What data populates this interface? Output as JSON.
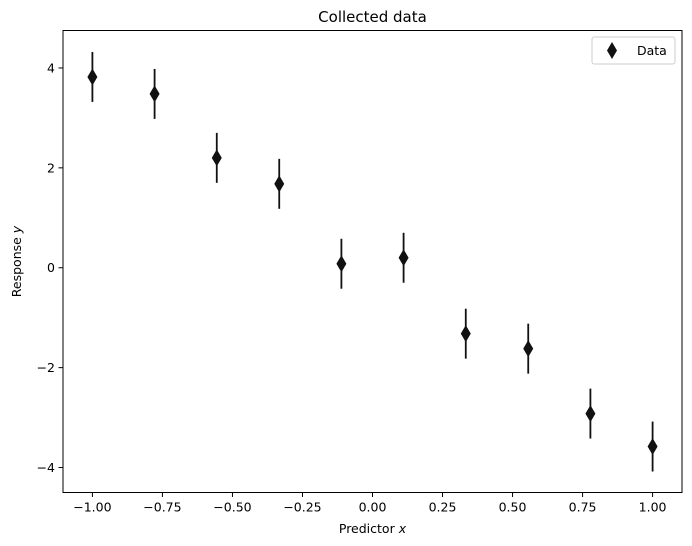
{
  "chart_data": {
    "type": "scatter",
    "title": "Collected data",
    "xlabel_text": "Predictor",
    "xlabel_var": "x",
    "ylabel_text": "Response",
    "ylabel_var": "y",
    "xlim": [
      -1.105,
      1.105
    ],
    "ylim": [
      -4.5,
      4.75
    ],
    "xticks": [
      -1.0,
      -0.75,
      -0.5,
      -0.25,
      0.0,
      0.25,
      0.5,
      0.75,
      1.0
    ],
    "xtick_labels": [
      "−1.00",
      "−0.75",
      "−0.50",
      "−0.25",
      "0.00",
      "0.25",
      "0.50",
      "0.75",
      "1.00"
    ],
    "yticks": [
      -4,
      -2,
      0,
      2,
      4
    ],
    "ytick_labels": [
      "−4",
      "−2",
      "0",
      "2",
      "4"
    ],
    "grid": false,
    "legend_position": "top-right",
    "series": [
      {
        "name": "Data",
        "marker": "thin-diamond",
        "color": "#111111",
        "x": [
          -1.0,
          -0.778,
          -0.556,
          -0.333,
          -0.111,
          0.111,
          0.333,
          0.556,
          0.778,
          1.0
        ],
        "y": [
          3.82,
          3.48,
          2.2,
          1.68,
          0.08,
          0.2,
          -1.32,
          -1.62,
          -2.92,
          -3.58
        ],
        "yerr": [
          0.5,
          0.5,
          0.5,
          0.5,
          0.5,
          0.5,
          0.5,
          0.5,
          0.5,
          0.5
        ]
      }
    ]
  }
}
